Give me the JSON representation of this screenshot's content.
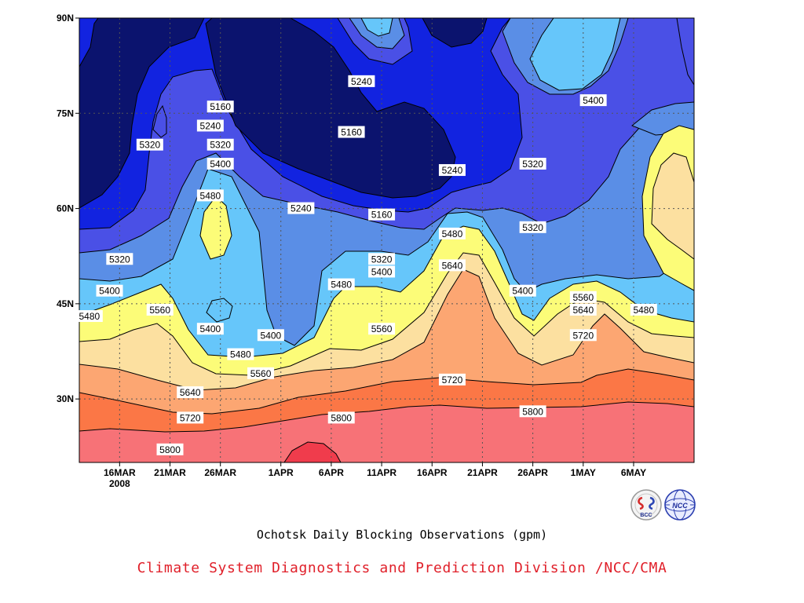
{
  "title": "Ochotsk Daily Blocking Observations (gpm)",
  "credit": "Climate System Diagnostics and Prediction Division /NCC/CMA",
  "credit_color": "#e0202a",
  "logos": [
    {
      "name": "bcc-logo",
      "text": "BCC"
    },
    {
      "name": "ncc-logo",
      "text": "NCC"
    }
  ],
  "chart_data": {
    "type": "contour",
    "xaxis": {
      "type": "date",
      "range": [
        "2008-03-12",
        "2008-05-12"
      ],
      "ticks": [
        {
          "date": "2008-03-16",
          "label": "16MAR",
          "sublabel": "2008"
        },
        {
          "date": "2008-03-21",
          "label": "21MAR"
        },
        {
          "date": "2008-03-26",
          "label": "26MAR"
        },
        {
          "date": "2008-04-01",
          "label": "1APR"
        },
        {
          "date": "2008-04-06",
          "label": "6APR"
        },
        {
          "date": "2008-04-11",
          "label": "11APR"
        },
        {
          "date": "2008-04-16",
          "label": "16APR"
        },
        {
          "date": "2008-04-21",
          "label": "21APR"
        },
        {
          "date": "2008-04-26",
          "label": "26APR"
        },
        {
          "date": "2008-05-01",
          "label": "1MAY"
        },
        {
          "date": "2008-05-06",
          "label": "6MAY"
        }
      ]
    },
    "yaxis": {
      "range": [
        20,
        90
      ],
      "ticks": [
        {
          "value": 30,
          "label": "30N"
        },
        {
          "value": 45,
          "label": "45N"
        },
        {
          "value": 60,
          "label": "60N"
        },
        {
          "value": 75,
          "label": "75N"
        },
        {
          "value": 90,
          "label": "90N"
        }
      ]
    },
    "grid": true,
    "levels": [
      5160,
      5240,
      5320,
      5400,
      5480,
      5560,
      5640,
      5720,
      5800,
      5880
    ],
    "fill_colors": [
      "#0b136e",
      "#1223e0",
      "#4a50e6",
      "#5a8ee6",
      "#66c6fa",
      "#fcfc78",
      "#fce0a0",
      "#fca672",
      "#fb7746",
      "#f77277",
      "#f03c4c"
    ],
    "contour_labels": [
      {
        "value": "5160",
        "date": "2008-03-26",
        "lat": 76
      },
      {
        "value": "5160",
        "date": "2008-04-08",
        "lat": 72
      },
      {
        "value": "5160",
        "date": "2008-04-11",
        "lat": 59
      },
      {
        "value": "5240",
        "date": "2008-03-25",
        "lat": 73
      },
      {
        "value": "5240",
        "date": "2008-04-09",
        "lat": 80
      },
      {
        "value": "5240",
        "date": "2008-04-03",
        "lat": 60
      },
      {
        "value": "5240",
        "date": "2008-04-18",
        "lat": 66
      },
      {
        "value": "5320",
        "date": "2008-03-19",
        "lat": 70
      },
      {
        "value": "5320",
        "date": "2008-03-26",
        "lat": 70
      },
      {
        "value": "5320",
        "date": "2008-03-16",
        "lat": 52
      },
      {
        "value": "5320",
        "date": "2008-04-11",
        "lat": 52
      },
      {
        "value": "5320",
        "date": "2008-04-26",
        "lat": 67
      },
      {
        "value": "5320",
        "date": "2008-04-26",
        "lat": 57
      },
      {
        "value": "5400",
        "date": "2008-03-26",
        "lat": 67
      },
      {
        "value": "5400",
        "date": "2008-03-15",
        "lat": 47
      },
      {
        "value": "5400",
        "date": "2008-03-25",
        "lat": 41
      },
      {
        "value": "5400",
        "date": "2008-03-31",
        "lat": 40
      },
      {
        "value": "5400",
        "date": "2008-04-11",
        "lat": 50
      },
      {
        "value": "5400",
        "date": "2008-04-25",
        "lat": 47
      },
      {
        "value": "5400",
        "date": "2008-05-02",
        "lat": 77
      },
      {
        "value": "5480",
        "date": "2008-03-25",
        "lat": 62
      },
      {
        "value": "5480",
        "date": "2008-03-13",
        "lat": 43
      },
      {
        "value": "5480",
        "date": "2008-03-28",
        "lat": 37
      },
      {
        "value": "5480",
        "date": "2008-04-07",
        "lat": 48
      },
      {
        "value": "5480",
        "date": "2008-04-18",
        "lat": 56
      },
      {
        "value": "5480",
        "date": "2008-05-07",
        "lat": 44
      },
      {
        "value": "5560",
        "date": "2008-03-20",
        "lat": 44
      },
      {
        "value": "5560",
        "date": "2008-03-30",
        "lat": 34
      },
      {
        "value": "5560",
        "date": "2008-04-11",
        "lat": 41
      },
      {
        "value": "5560",
        "date": "2008-05-01",
        "lat": 46
      },
      {
        "value": "5640",
        "date": "2008-03-23",
        "lat": 31
      },
      {
        "value": "5640",
        "date": "2008-04-18",
        "lat": 51
      },
      {
        "value": "5640",
        "date": "2008-05-01",
        "lat": 44
      },
      {
        "value": "5720",
        "date": "2008-03-23",
        "lat": 27
      },
      {
        "value": "5720",
        "date": "2008-04-18",
        "lat": 33
      },
      {
        "value": "5720",
        "date": "2008-05-01",
        "lat": 40
      },
      {
        "value": "5800",
        "date": "2008-03-21",
        "lat": 22
      },
      {
        "value": "5800",
        "date": "2008-04-07",
        "lat": 27
      },
      {
        "value": "5800",
        "date": "2008-04-26",
        "lat": 28
      }
    ]
  }
}
